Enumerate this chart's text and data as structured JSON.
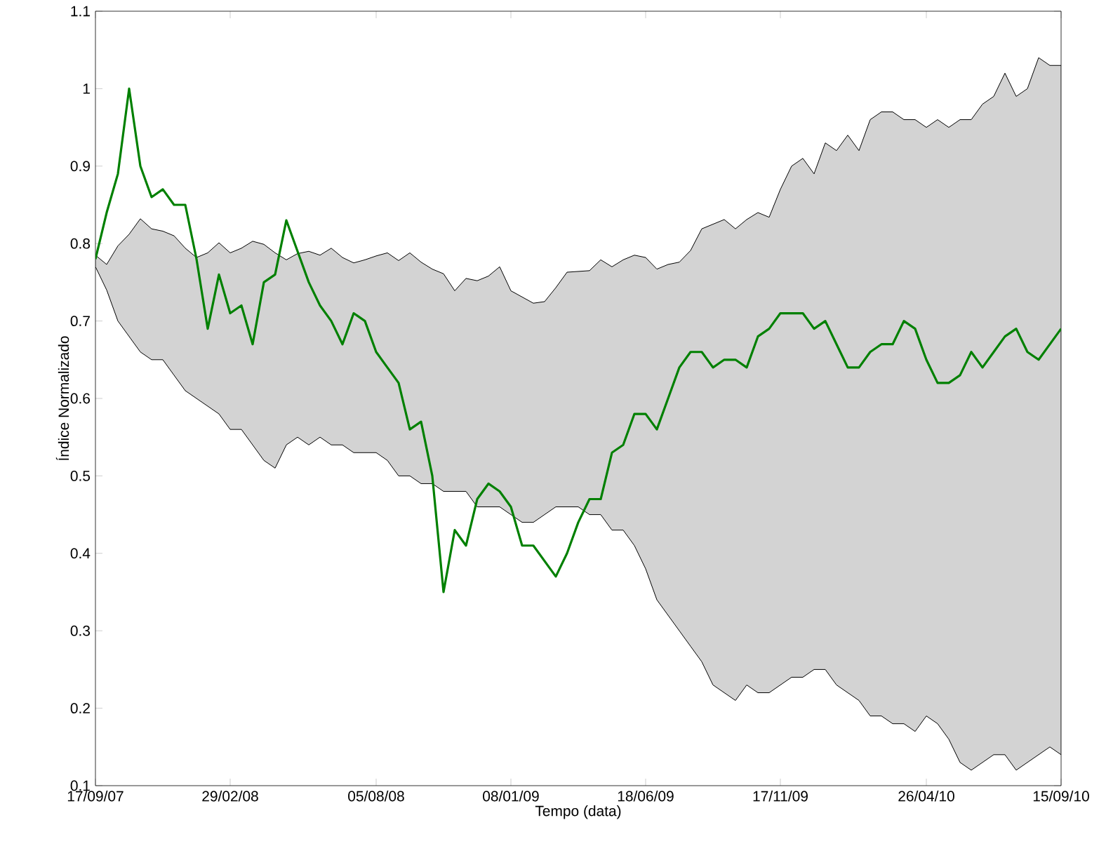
{
  "chart_data": {
    "type": "line",
    "xlabel": "Tempo (data)",
    "ylabel": "Índice Normalizado",
    "categories": [
      "17/09/07",
      null,
      null,
      null,
      null,
      null,
      null,
      null,
      null,
      null,
      null,
      null,
      "29/02/08",
      null,
      null,
      null,
      null,
      null,
      null,
      null,
      null,
      null,
      null,
      null,
      null,
      "05/08/08",
      null,
      null,
      null,
      null,
      null,
      null,
      null,
      null,
      null,
      null,
      null,
      "08/01/09",
      null,
      null,
      null,
      null,
      null,
      null,
      null,
      null,
      null,
      null,
      null,
      "18/06/09",
      null,
      null,
      null,
      null,
      null,
      null,
      null,
      null,
      null,
      null,
      null,
      "17/11/09",
      null,
      null,
      null,
      null,
      null,
      null,
      null,
      null,
      null,
      null,
      null,
      null,
      "26/04/10",
      null,
      null,
      null,
      null,
      null,
      null,
      null,
      null,
      null,
      null,
      null,
      "15/09/10"
    ],
    "series": [
      {
        "color": "#008000",
        "values": [
          0.78,
          0.84,
          0.89,
          1.0,
          0.9,
          0.86,
          0.87,
          0.85,
          0.85,
          0.78,
          0.69,
          0.76,
          0.71,
          0.72,
          0.67,
          0.75,
          0.76,
          0.83,
          0.79,
          0.75,
          0.72,
          0.7,
          0.67,
          0.71,
          0.7,
          0.66,
          0.64,
          0.62,
          0.56,
          0.57,
          0.5,
          0.35,
          0.43,
          0.41,
          0.47,
          0.49,
          0.48,
          0.46,
          0.41,
          0.41,
          0.39,
          0.37,
          0.4,
          0.44,
          0.47,
          0.47,
          0.53,
          0.54,
          0.58,
          0.58,
          0.56,
          0.6,
          0.64,
          0.66,
          0.66,
          0.64,
          0.65,
          0.65,
          0.64,
          0.68,
          0.69,
          0.71,
          0.71,
          0.71,
          0.69,
          0.7,
          0.67,
          0.64,
          0.64,
          0.66,
          0.67,
          0.67,
          0.7,
          0.69,
          0.65,
          0.62,
          0.62,
          0.63,
          0.66,
          0.64,
          0.66,
          0.68,
          0.69,
          0.66,
          0.65,
          0.67,
          0.69
        ],
        "upper": [
          0.785,
          0.773,
          0.797,
          0.812,
          0.832,
          0.819,
          0.816,
          0.81,
          0.794,
          0.782,
          0.788,
          0.801,
          0.788,
          0.794,
          0.803,
          0.799,
          0.788,
          0.779,
          0.787,
          0.79,
          0.785,
          0.794,
          0.782,
          0.775,
          0.779,
          0.784,
          0.788,
          0.778,
          0.788,
          0.776,
          0.767,
          0.761,
          0.739,
          0.755,
          0.752,
          0.758,
          0.77,
          0.739,
          0.731,
          0.723,
          0.725,
          0.743,
          0.763,
          0.764,
          0.765,
          0.779,
          0.77,
          0.779,
          0.785,
          0.782,
          0.767,
          0.773,
          0.776,
          0.791,
          0.819,
          0.825,
          0.831,
          0.819,
          0.831,
          0.84,
          0.834,
          0.87,
          0.9,
          0.91,
          0.89,
          0.93,
          0.92,
          0.94,
          0.92,
          0.96,
          0.97,
          0.97,
          0.96,
          0.96,
          0.95,
          0.96,
          0.95,
          0.96,
          0.96,
          0.98,
          0.99,
          1.02,
          0.99,
          1.0,
          1.04,
          1.03,
          1.03
        ],
        "lower": [
          0.77,
          0.74,
          0.7,
          0.68,
          0.66,
          0.65,
          0.65,
          0.63,
          0.61,
          0.6,
          0.59,
          0.58,
          0.56,
          0.56,
          0.54,
          0.52,
          0.51,
          0.54,
          0.55,
          0.54,
          0.55,
          0.54,
          0.54,
          0.53,
          0.53,
          0.53,
          0.52,
          0.5,
          0.5,
          0.49,
          0.49,
          0.48,
          0.48,
          0.48,
          0.46,
          0.46,
          0.46,
          0.45,
          0.44,
          0.44,
          0.45,
          0.46,
          0.46,
          0.46,
          0.45,
          0.45,
          0.43,
          0.43,
          0.41,
          0.38,
          0.34,
          0.32,
          0.3,
          0.28,
          0.26,
          0.23,
          0.22,
          0.21,
          0.23,
          0.22,
          0.22,
          0.23,
          0.24,
          0.24,
          0.25,
          0.25,
          0.23,
          0.22,
          0.21,
          0.19,
          0.19,
          0.18,
          0.18,
          0.17,
          0.19,
          0.18,
          0.16,
          0.13,
          0.12,
          0.13,
          0.14,
          0.14,
          0.12,
          0.13,
          0.14,
          0.15,
          0.14
        ]
      }
    ],
    "ylim": [
      0.1,
      1.1
    ],
    "yticks": [
      0.1,
      0.2,
      0.3,
      0.4,
      0.5,
      0.6,
      0.7,
      0.8,
      0.9,
      1,
      1.1
    ],
    "grid": false,
    "marker": "none",
    "line_style": "solid"
  }
}
